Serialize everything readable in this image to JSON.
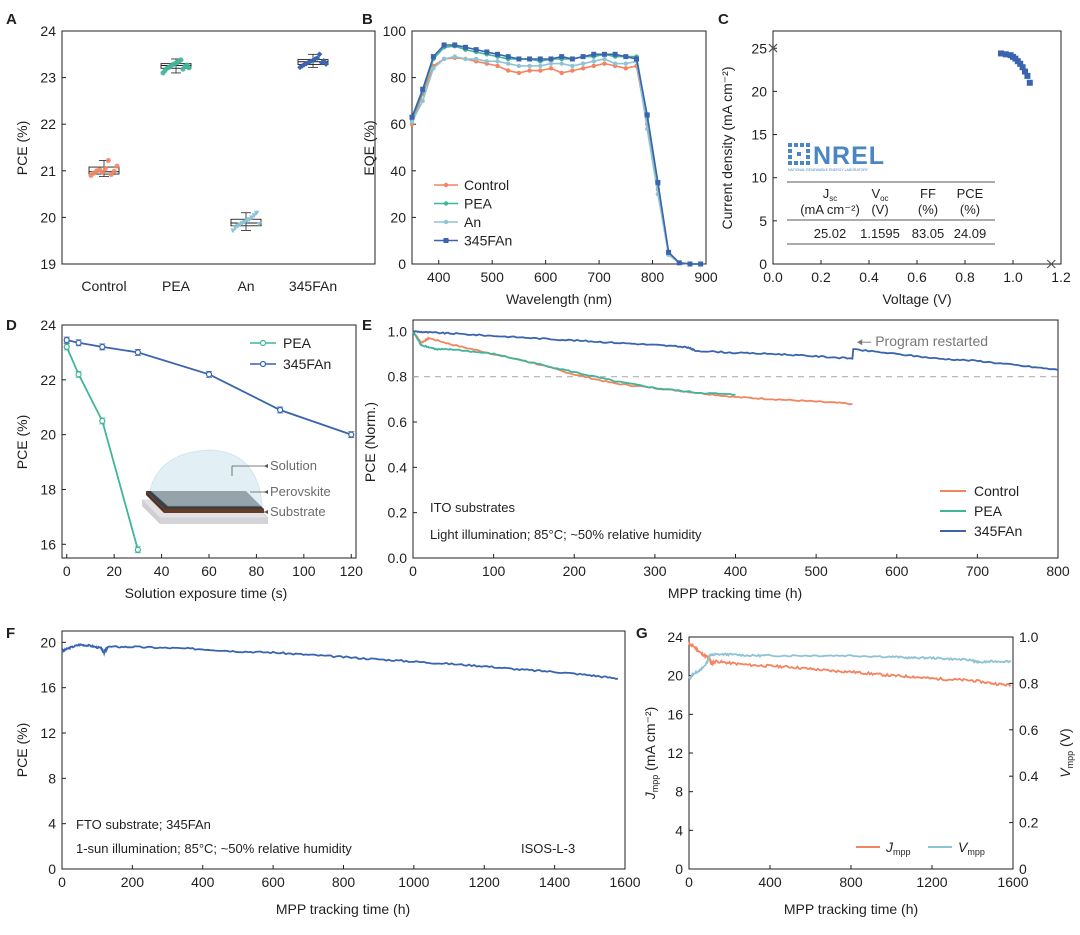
{
  "colors": {
    "control": "#f4845f",
    "pea": "#3fb59a",
    "an": "#8ec3d6",
    "fan": "#3a64ad",
    "jmpp": "#f4845f",
    "vmpp": "#8ec3d6",
    "gray": "#b0b0b0"
  },
  "chart_data": [
    {
      "panel": "A",
      "type": "box",
      "ylabel": "PCE (%)",
      "ylim": [
        19,
        24
      ],
      "yticks": [
        19,
        20,
        21,
        22,
        23,
        24
      ],
      "categories": [
        "Control",
        "PEA",
        "An",
        "345FAn"
      ],
      "boxes": [
        {
          "name": "Control",
          "q1": 20.93,
          "median": 20.98,
          "q3": 21.08,
          "min": 20.88,
          "max": 21.22,
          "points": [
            20.9,
            20.95,
            21.0,
            21.02,
            20.97,
            21.05,
            21.22,
            20.92,
            20.99,
            21.1
          ]
        },
        {
          "name": "PEA",
          "q1": 23.2,
          "median": 23.26,
          "q3": 23.3,
          "min": 23.1,
          "max": 23.4,
          "points": [
            23.1,
            23.15,
            23.2,
            23.22,
            23.25,
            23.28,
            23.3,
            23.32,
            23.35,
            23.38,
            23.18,
            23.24,
            23.27,
            23.21
          ]
        },
        {
          "name": "An",
          "q1": 19.82,
          "median": 19.88,
          "q3": 19.96,
          "min": 19.72,
          "max": 20.1,
          "points": [
            19.72,
            19.78,
            19.82,
            19.85,
            19.88,
            19.9,
            19.93,
            19.96,
            20.0,
            20.05,
            20.1,
            19.86
          ]
        },
        {
          "name": "345FAn",
          "q1": 23.28,
          "median": 23.34,
          "q3": 23.39,
          "min": 23.22,
          "max": 23.5,
          "points": [
            23.22,
            23.25,
            23.28,
            23.3,
            23.33,
            23.35,
            23.37,
            23.4,
            23.42,
            23.5,
            23.32,
            23.36,
            23.29
          ]
        }
      ]
    },
    {
      "panel": "B",
      "type": "line",
      "xlabel": "Wavelength (nm)",
      "ylabel": "EQE (%)",
      "xlim": [
        350,
        900
      ],
      "ylim": [
        0,
        100
      ],
      "xticks": [
        400,
        500,
        600,
        700,
        800,
        900
      ],
      "yticks": [
        0,
        20,
        40,
        60,
        80,
        100
      ],
      "x": [
        350,
        370,
        390,
        410,
        430,
        450,
        470,
        490,
        510,
        530,
        550,
        570,
        590,
        610,
        630,
        650,
        670,
        690,
        710,
        730,
        750,
        770,
        790,
        810,
        830,
        850,
        870,
        890
      ],
      "series": [
        {
          "name": "Control",
          "values": [
            60,
            73,
            85,
            88,
            88.5,
            88,
            87,
            86,
            85,
            83,
            82,
            83,
            83,
            84,
            82,
            83,
            84,
            85,
            86,
            85,
            84,
            85,
            60,
            32,
            4,
            0.5,
            0,
            0
          ]
        },
        {
          "name": "PEA",
          "values": [
            62,
            74,
            88,
            93,
            93.5,
            92,
            91,
            90,
            89,
            88,
            88,
            88,
            87,
            88,
            88,
            88,
            89,
            89,
            90,
            89,
            89,
            89,
            63,
            34,
            5,
            0.5,
            0,
            0
          ]
        },
        {
          "name": "An",
          "values": [
            61,
            70,
            84,
            88,
            89,
            88,
            88,
            87,
            87,
            86,
            85,
            85,
            85,
            86,
            86,
            85,
            86,
            87,
            88,
            86,
            86,
            87,
            58,
            30,
            4,
            0.5,
            0,
            0
          ]
        },
        {
          "name": "345FAn",
          "values": [
            63,
            75,
            89,
            94,
            94,
            93,
            92,
            91,
            90,
            89,
            88,
            88,
            88,
            88,
            89,
            88,
            89,
            90,
            90,
            90,
            89,
            88,
            64,
            35,
            5,
            0.5,
            0,
            0
          ]
        }
      ]
    },
    {
      "panel": "C",
      "type": "scatter",
      "xlabel": "Voltage (V)",
      "ylabel": "Current density (mA cm⁻²)",
      "xlim": [
        0,
        1.2
      ],
      "ylim": [
        0,
        27
      ],
      "xticks": [
        0.0,
        0.2,
        0.4,
        0.6,
        0.8,
        1.0,
        1.2
      ],
      "yticks": [
        0,
        5,
        10,
        15,
        20,
        25
      ],
      "x": [
        0.95,
        0.97,
        0.99,
        1.0,
        1.01,
        1.02,
        1.03,
        1.04,
        1.05,
        1.06,
        1.07
      ],
      "values": [
        24.4,
        24.3,
        24.2,
        24.0,
        23.8,
        23.5,
        23.2,
        22.8,
        22.3,
        21.8,
        21.0
      ],
      "markers_x": [
        {
          "x": 0,
          "y": 25.02
        },
        {
          "x": 1.1595,
          "y": 0
        }
      ],
      "logo": "NREL",
      "logo_sub": "NATIONAL RENEWABLE ENERGY LABORATORY",
      "table": {
        "headers": [
          "J",
          "V",
          "FF",
          "PCE"
        ],
        "subs": [
          "sc",
          "oc",
          "",
          ""
        ],
        "units": [
          "(mA cm⁻²)",
          "(V)",
          "(%)",
          "(%)"
        ],
        "values": [
          "25.02",
          "1.1595",
          "83.05",
          "24.09"
        ]
      }
    },
    {
      "panel": "D",
      "type": "line",
      "xlabel": "Solution exposure time (s)",
      "ylabel": "PCE (%)",
      "xlim": [
        -2,
        122
      ],
      "ylim": [
        15.5,
        24
      ],
      "xticks": [
        0,
        20,
        40,
        60,
        80,
        100,
        120
      ],
      "yticks": [
        16,
        18,
        20,
        22,
        24
      ],
      "series": [
        {
          "name": "PEA",
          "x": [
            0,
            5,
            15,
            30
          ],
          "values": [
            23.2,
            22.2,
            20.5,
            15.8
          ]
        },
        {
          "name": "345FAn",
          "x": [
            0,
            5,
            15,
            30,
            60,
            90,
            120
          ],
          "values": [
            23.45,
            23.35,
            23.2,
            23.0,
            22.2,
            20.9,
            20.0
          ]
        }
      ],
      "inset_labels": [
        "Solution",
        "Perovskite",
        "Substrate"
      ]
    },
    {
      "panel": "E",
      "type": "line",
      "xlabel": "MPP tracking time (h)",
      "ylabel": "PCE (Norm.)",
      "xlim": [
        0,
        800
      ],
      "ylim": [
        0,
        1.05
      ],
      "xticks": [
        0,
        100,
        200,
        300,
        400,
        500,
        600,
        700,
        800
      ],
      "yticks": [
        0,
        0.2,
        0.4,
        0.6,
        0.8,
        1.0
      ],
      "series": [
        {
          "name": "Control",
          "x": [
            0,
            10,
            20,
            50,
            100,
            150,
            200,
            250,
            300,
            350,
            400,
            450,
            500,
            545
          ],
          "values": [
            1.0,
            0.95,
            0.97,
            0.94,
            0.9,
            0.86,
            0.81,
            0.77,
            0.75,
            0.73,
            0.71,
            0.7,
            0.69,
            0.68
          ]
        },
        {
          "name": "PEA",
          "x": [
            0,
            10,
            30,
            50,
            100,
            150,
            200,
            250,
            300,
            350,
            400
          ],
          "values": [
            1.0,
            0.94,
            0.92,
            0.92,
            0.9,
            0.86,
            0.82,
            0.78,
            0.75,
            0.73,
            0.72
          ]
        },
        {
          "name": "345FAn",
          "x": [
            0,
            20,
            50,
            100,
            150,
            200,
            250,
            300,
            340,
            350,
            400,
            450,
            500,
            545,
            546,
            600,
            650,
            700,
            750,
            800
          ],
          "values": [
            1.0,
            0.995,
            0.99,
            0.98,
            0.97,
            0.96,
            0.95,
            0.94,
            0.93,
            0.915,
            0.905,
            0.9,
            0.89,
            0.88,
            0.92,
            0.9,
            0.88,
            0.87,
            0.85,
            0.83
          ]
        }
      ],
      "threshold": 0.8,
      "annotation": "Program restarted",
      "notes": [
        "ITO substrates",
        "Light illumination; 85°C; ~50% relative humidity"
      ]
    },
    {
      "panel": "F",
      "type": "line",
      "xlabel": "MPP tracking time (h)",
      "ylabel": "PCE (%)",
      "xlim": [
        0,
        1600
      ],
      "ylim": [
        0,
        21
      ],
      "xticks": [
        0,
        200,
        400,
        600,
        800,
        1000,
        1200,
        1400,
        1600
      ],
      "yticks": [
        0,
        4,
        8,
        12,
        16,
        20
      ],
      "series": [
        {
          "name": "345FAn",
          "x": [
            0,
            20,
            50,
            80,
            110,
            120,
            130,
            200,
            300,
            400,
            500,
            600,
            700,
            800,
            900,
            1000,
            1100,
            1200,
            1300,
            1400,
            1500,
            1580
          ],
          "values": [
            19.2,
            19.5,
            19.8,
            19.7,
            19.5,
            19.1,
            19.6,
            19.6,
            19.5,
            19.4,
            19.2,
            19.1,
            18.9,
            18.7,
            18.5,
            18.3,
            18.1,
            17.9,
            17.6,
            17.4,
            17.1,
            16.8
          ]
        }
      ],
      "notes": [
        "FTO substrate; 345FAn",
        "1-sun illumination; 85°C; ~50% relative humidity",
        "ISOS-L-3"
      ]
    },
    {
      "panel": "G",
      "type": "line",
      "xlabel": "MPP tracking time (h)",
      "ylabel": "J",
      "ylabel_sub": "mpp",
      "ylabel_unit": " (mA cm⁻²)",
      "y2label": "V",
      "y2label_sub": "mpp",
      "y2label_unit": " (V)",
      "xlim": [
        0,
        1600
      ],
      "ylim": [
        0,
        24
      ],
      "y2lim": [
        0,
        1.0
      ],
      "xticks": [
        0,
        400,
        800,
        1200,
        1600
      ],
      "yticks": [
        0,
        4,
        8,
        12,
        16,
        20,
        24
      ],
      "y2ticks": [
        "0",
        "0.2",
        "0.4",
        "0.6",
        "0.8",
        "1.0"
      ],
      "series": [
        {
          "name": "J",
          "sub": "mpp",
          "axis": "left",
          "x": [
            0,
            20,
            60,
            100,
            110,
            130,
            200,
            300,
            400,
            500,
            600,
            700,
            800,
            900,
            1000,
            1100,
            1200,
            1300,
            1400,
            1500,
            1590
          ],
          "values": [
            23.3,
            23.1,
            22.3,
            21.8,
            21.2,
            21.5,
            21.3,
            21.1,
            21.0,
            20.9,
            20.7,
            20.5,
            20.4,
            20.2,
            20.0,
            19.9,
            19.7,
            19.6,
            19.5,
            19.2,
            19.0
          ]
        },
        {
          "name": "V",
          "sub": "mpp",
          "axis": "right",
          "x": [
            0,
            20,
            60,
            90,
            100,
            130,
            200,
            300,
            400,
            600,
            800,
            1000,
            1100,
            1200,
            1300,
            1400,
            1430,
            1500,
            1590
          ],
          "values": [
            0.82,
            0.84,
            0.86,
            0.89,
            0.92,
            0.925,
            0.925,
            0.92,
            0.92,
            0.92,
            0.92,
            0.915,
            0.91,
            0.91,
            0.905,
            0.9,
            0.89,
            0.895,
            0.895
          ]
        }
      ]
    }
  ]
}
